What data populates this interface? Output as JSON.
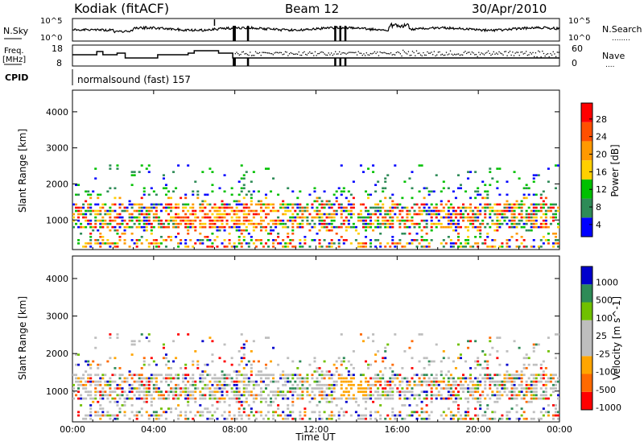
{
  "header": {
    "station": "Kodiak (fitACF)",
    "beam": "Beam 12",
    "date": "30/Apr/2010"
  },
  "noise_panel": {
    "left_label": "N.Sky",
    "right_label": "N.Search",
    "right_legend": "........",
    "ticks": [
      "10^5",
      "10^0"
    ]
  },
  "freq_panel": {
    "left_label_line1": "Freq.",
    "left_label_line2": "[MHz]",
    "left_ticks": [
      "18",
      "8"
    ],
    "right_label": "Nave",
    "right_legend": "....",
    "right_ticks": [
      "60",
      "0"
    ]
  },
  "cpid_panel": {
    "label": "CPID",
    "text": "normalsound (fast) 157"
  },
  "colors": {
    "power_scale": [
      "#0000ff",
      "#2e8b57",
      "#00c000",
      "#ffd000",
      "#ff9900",
      "#ff5000",
      "#ff0000"
    ],
    "velocity_scale": [
      "#ff0000",
      "#ff6a00",
      "#ffa500",
      "#bebebe",
      "#bebebe",
      "#70c000",
      "#2e8b57",
      "#0000cc"
    ]
  },
  "chart_data": [
    {
      "type": "heatmap",
      "panel": "power",
      "ylabel": "Slant Range [km]",
      "yticks": [
        1000,
        2000,
        3000,
        4000
      ],
      "ylim": [
        180,
        4600
      ],
      "xlim": [
        0,
        24
      ],
      "colorbar_label": "Power [dB]",
      "colorbar_ticks": [
        "28",
        "24",
        "20",
        "16",
        "12",
        "8",
        "4"
      ],
      "colorbar_range": [
        0,
        30
      ]
    },
    {
      "type": "heatmap",
      "panel": "velocity",
      "ylabel": "Slant Range [km]",
      "yticks": [
        1000,
        2000,
        3000,
        4000
      ],
      "ylim": [
        180,
        4600
      ],
      "xlim": [
        0,
        24
      ],
      "colorbar_label": "Velocity [m s^-1]",
      "colorbar_ticks": [
        "1000",
        "500",
        "100",
        "25",
        "-25",
        "-100",
        "-500",
        "-1000"
      ]
    }
  ],
  "x_axis": {
    "label": "Time UT",
    "ticks": [
      "00:00",
      "04:00",
      "08:00",
      "12:00",
      "16:00",
      "20:00",
      "00:00"
    ]
  }
}
